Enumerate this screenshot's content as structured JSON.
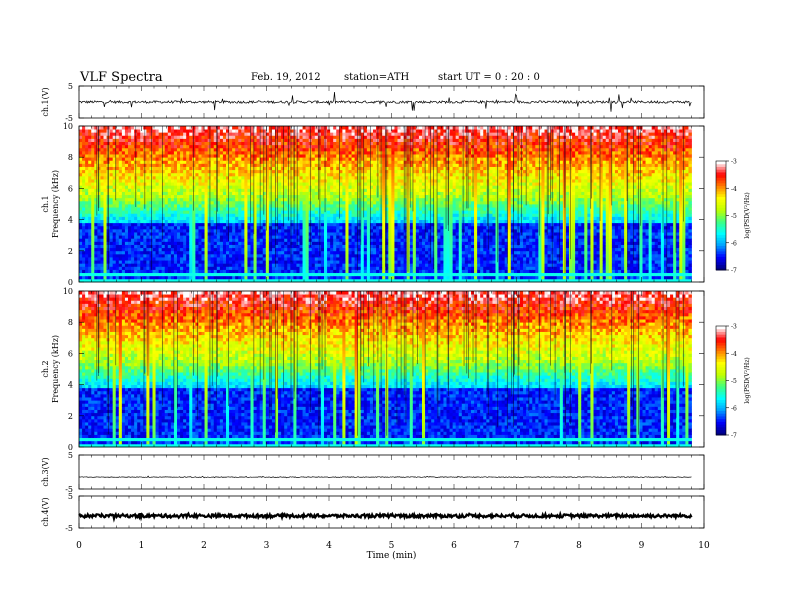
{
  "header": {
    "title": "VLF  Spectra",
    "date": "Feb. 19, 2012",
    "station": "station=ATH",
    "start": "start  UT =   0 : 20 : 0"
  },
  "chart_data": [
    {
      "type": "line",
      "panel": "ch1-waveform",
      "ylabel": "ch.1(V)",
      "ylim": [
        -5,
        5
      ],
      "yticks": [
        "5",
        "-5"
      ],
      "xlim": [
        0,
        10
      ],
      "baseline": 0,
      "noise_amplitude": 0.4,
      "spike_amplitude": 3,
      "x_end": 9.8
    },
    {
      "type": "heatmap",
      "panel": "ch1-spectrogram",
      "ylabel": "ch.1\nFrequency (kHz)",
      "ylim": [
        0,
        10
      ],
      "yticks": [
        "0",
        "2",
        "4",
        "6",
        "8",
        "10"
      ],
      "xlim": [
        0,
        10
      ],
      "x_end": 9.8,
      "colorbar": {
        "label": "log(PSD(V²/Hz)",
        "range": [
          -7,
          -3
        ],
        "ticks": [
          "-3",
          "-4",
          "-5",
          "-6",
          "-7"
        ],
        "colors": [
          "#000080",
          "#0000ff",
          "#00a0ff",
          "#00ffff",
          "#40ff80",
          "#c0ff00",
          "#ffff00",
          "#ff8000",
          "#ff0000",
          "#ffffff"
        ]
      }
    },
    {
      "type": "heatmap",
      "panel": "ch2-spectrogram",
      "ylabel": "ch.2\nFrequency (kHz)",
      "ylim": [
        0,
        10
      ],
      "yticks": [
        "0",
        "2",
        "4",
        "6",
        "8",
        "10"
      ],
      "xlim": [
        0,
        10
      ],
      "x_end": 9.8,
      "colorbar": {
        "label": "log(PSD(V²/Hz)",
        "range": [
          -7,
          -3
        ],
        "ticks": [
          "-3",
          "-4",
          "-5",
          "-6",
          "-7"
        ],
        "colors": [
          "#000080",
          "#0000ff",
          "#00a0ff",
          "#00ffff",
          "#40ff80",
          "#c0ff00",
          "#ffff00",
          "#ff8000",
          "#ff0000",
          "#ffffff"
        ]
      }
    },
    {
      "type": "line",
      "panel": "ch3-waveform",
      "ylabel": "ch.3(V)",
      "ylim": [
        -5,
        5
      ],
      "yticks": [
        "5",
        "-5"
      ],
      "xlim": [
        0,
        10
      ],
      "baseline": -1.5,
      "noise_amplitude": 0.1,
      "spike_amplitude": 0.2,
      "x_end": 9.8
    },
    {
      "type": "line",
      "panel": "ch4-waveform",
      "ylabel": "ch.4(V)",
      "ylim": [
        -5,
        5
      ],
      "yticks": [
        "5",
        "-5"
      ],
      "xlim": [
        0,
        10
      ],
      "baseline": -1.2,
      "noise_amplitude": 0.5,
      "spike_amplitude": 0.5,
      "x_end": 9.8
    }
  ],
  "x_axis": {
    "label": "Time (min)",
    "ticks": [
      "0",
      "1",
      "2",
      "3",
      "4",
      "5",
      "6",
      "7",
      "8",
      "9",
      "10"
    ]
  }
}
